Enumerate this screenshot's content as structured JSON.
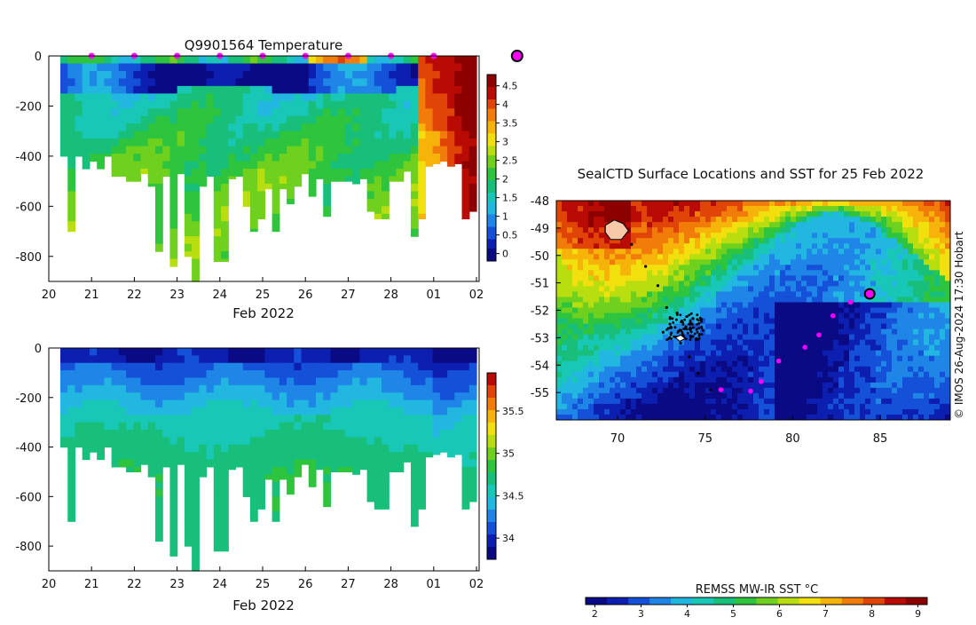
{
  "colors": {
    "marker": "#ff00ff",
    "temp_cmap": [
      "#0a0a85",
      "#0d1fb0",
      "#1450d8",
      "#1f86e8",
      "#22b7e0",
      "#19c7b7",
      "#18bf7a",
      "#2ec43e",
      "#6fd11e",
      "#b9de10",
      "#f1e00d",
      "#f6b40b",
      "#f27c09",
      "#e04407",
      "#b80b04",
      "#8d0000"
    ],
    "sal_cmap": [
      "#0a0a85",
      "#0d1fb0",
      "#1450d8",
      "#1f86e8",
      "#22b7e0",
      "#19c7b7",
      "#18bf7a",
      "#2ec43e",
      "#6fd11e",
      "#b9de10",
      "#f1e00d",
      "#f6b40b",
      "#f27c09",
      "#e04407",
      "#b80b04"
    ],
    "sst_cmap": [
      "#0a0a85",
      "#0d1fb0",
      "#1450d8",
      "#1f86e8",
      "#22b7e0",
      "#19c7b7",
      "#18bf7a",
      "#2ec43e",
      "#6fd11e",
      "#b9de10",
      "#f1e00d",
      "#f6b40b",
      "#f27c09",
      "#e04407",
      "#b80b04",
      "#8d0000"
    ]
  },
  "chart_data": [
    {
      "type": "heatmap",
      "title": "Q9901564  Temperature",
      "xlabel": "Feb 2022",
      "x_ticks": [
        "20",
        "21",
        "22",
        "23",
        "24",
        "25",
        "26",
        "27",
        "28",
        "01",
        "02"
      ],
      "y_ticks": [
        0,
        -200,
        -400,
        -600,
        -800
      ],
      "ylim": [
        -900,
        0
      ],
      "colorbar": {
        "ticks": [
          "0",
          "0.5",
          "1",
          "1.5",
          "2",
          "2.5",
          "3",
          "3.5",
          "4",
          "4.5"
        ],
        "range": [
          -0.2,
          4.8
        ]
      },
      "profile_bottoms": [
        -400,
        -700,
        -400,
        -450,
        -420,
        -450,
        -400,
        -480,
        -480,
        -500,
        -500,
        -470,
        -520,
        -780,
        -480,
        -840,
        -470,
        -800,
        -900,
        -520,
        -480,
        -820,
        -820,
        -490,
        -480,
        -600,
        -700,
        -650,
        -530,
        -700,
        -530,
        -590,
        -520,
        -470,
        -560,
        -490,
        -640,
        -500,
        -500,
        -500,
        -510,
        -490,
        -620,
        -650,
        -650,
        -500,
        -500,
        -460,
        -720,
        -650,
        -440,
        -430,
        -420,
        -440,
        -430,
        -650,
        -620
      ],
      "markers_day": [
        21,
        22,
        23,
        24,
        25,
        26,
        27,
        28,
        29
      ],
      "current_day": 30.95
    },
    {
      "type": "heatmap",
      "title": "",
      "xlabel": "Feb 2022",
      "x_ticks": [
        "20",
        "21",
        "22",
        "23",
        "24",
        "25",
        "26",
        "27",
        "28",
        "01",
        "02"
      ],
      "y_ticks": [
        0,
        -200,
        -400,
        -600,
        -800
      ],
      "ylim": [
        -900,
        0
      ],
      "colorbar": {
        "ticks": [
          "34",
          "34.5",
          "35",
          "35.5"
        ],
        "range": [
          33.75,
          35.95
        ]
      }
    },
    {
      "type": "map",
      "title": "SealCTD Surface Locations and SST for 25 Feb 2022",
      "x_ticks": [
        "70",
        "75",
        "80",
        "85"
      ],
      "y_ticks": [
        "-48",
        "-49",
        "-50",
        "-51",
        "-52",
        "-53",
        "-54",
        "-55"
      ],
      "xlim": [
        66.5,
        89
      ],
      "ylim": [
        -56,
        -48
      ],
      "colorbar": {
        "label": "REMSS MW-IR SST °C",
        "ticks": [
          "2",
          "3",
          "4",
          "5",
          "6",
          "7",
          "8",
          "9"
        ],
        "range": [
          1.8,
          9.2
        ]
      },
      "track_magenta": [
        [
          75.9,
          -54.9
        ],
        [
          77.6,
          -54.95
        ],
        [
          78.2,
          -54.6
        ],
        [
          79.2,
          -53.85
        ],
        [
          80.7,
          -53.35
        ],
        [
          81.5,
          -52.9
        ],
        [
          82.3,
          -52.2
        ],
        [
          83.3,
          -51.7
        ]
      ],
      "current_position": [
        84.4,
        -51.4
      ]
    }
  ],
  "footer": {
    "credit": "© IMOS 26-Aug-2024 17:30 Hobart"
  }
}
